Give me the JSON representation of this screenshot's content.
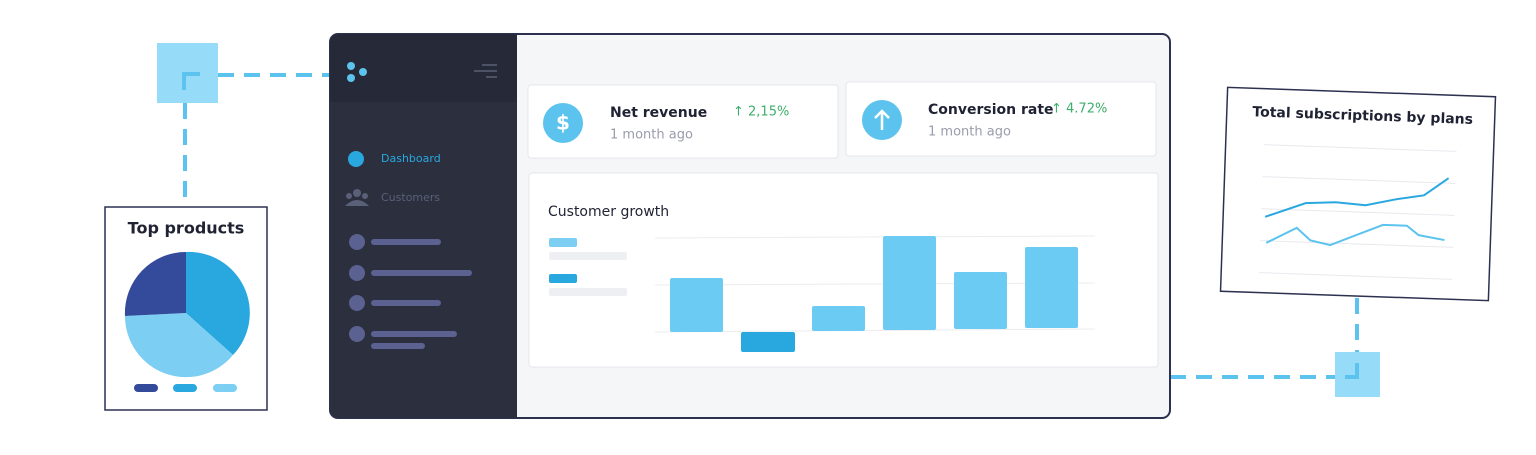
{
  "sidebar": {
    "items": [
      "Dashboard",
      "Customers"
    ]
  },
  "cards": [
    {
      "icon": "$",
      "title": "Net revenue",
      "change": "↑ 2,15%",
      "subtitle": "1 month ago"
    },
    {
      "title": "Conversion rate",
      "change": "↑ 4.72%",
      "subtitle": "1 month ago"
    }
  ],
  "panel": {
    "title": "Customer growth"
  },
  "top_products": {
    "title": "Top products"
  },
  "subscriptions": {
    "title": "Total subscriptions by plans"
  }
}
